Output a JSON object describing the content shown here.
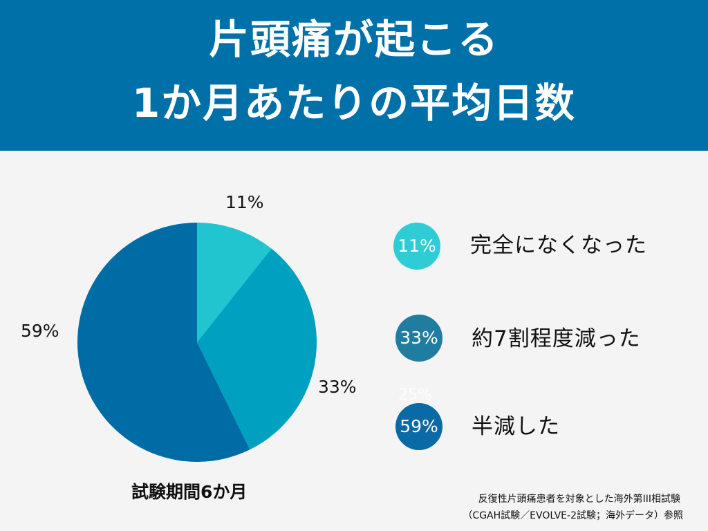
{
  "header": {
    "title_line1": "片頭痛が起こる",
    "title_line2": "1か月あたりの平均日数",
    "bg_color": "#0070a8"
  },
  "chart_data": {
    "type": "pie",
    "categories": [
      "完全になくなった",
      "約7割程度減った",
      "半減した"
    ],
    "values": [
      11,
      33,
      59
    ],
    "labels": [
      "11%",
      "33%",
      "59%"
    ],
    "colors": [
      "#20c5cf",
      "#00a0c0",
      "#006ca6"
    ],
    "start_angle_deg": 0,
    "direction": "clockwise"
  },
  "legend": {
    "items": [
      {
        "badge": "11%",
        "label": "完全になくなった",
        "color": "#2ecdd6"
      },
      {
        "badge": "33%",
        "label": "約7割程度減った",
        "color": "#217d9f"
      },
      {
        "badge": "59%",
        "label": "半減した",
        "color": "#0a6aa6"
      }
    ],
    "ghost_text": "25%"
  },
  "period_label": "試験期間6か月",
  "source_note": {
    "line1": "反復性片頭痛患者を対象とした海外第III相試験",
    "line2": "（CGAH試験／EVOLVE-2試験；海外データ）参照"
  }
}
